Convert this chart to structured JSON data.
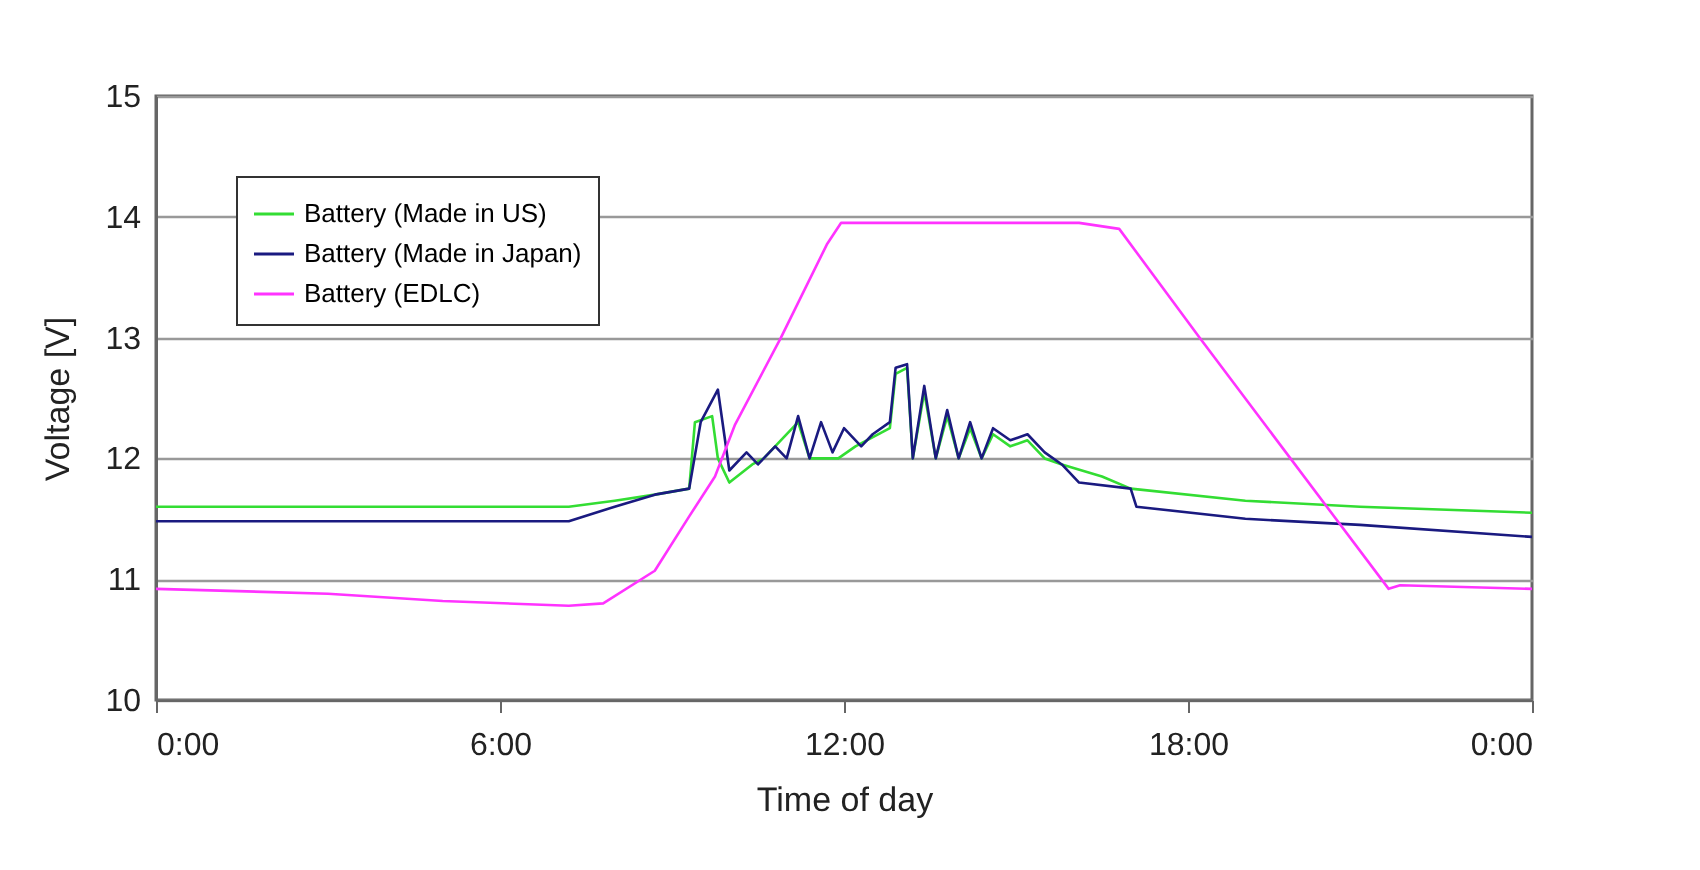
{
  "chart_data": {
    "type": "line",
    "xlabel": "Time of day",
    "ylabel": "Voltage  [V]",
    "xlim": [
      0,
      24
    ],
    "xticks": [
      {
        "value": 0,
        "label": "0:00"
      },
      {
        "value": 6,
        "label": "6:00"
      },
      {
        "value": 12,
        "label": "12:00"
      },
      {
        "value": 18,
        "label": "18:00"
      },
      {
        "value": 24,
        "label": "0:00"
      }
    ],
    "ylim": [
      10,
      15
    ],
    "yticks": [
      10,
      11,
      12,
      13,
      14,
      15
    ],
    "grid": "y",
    "legend": "top left",
    "marker": "none",
    "line_style": "solid",
    "series": [
      {
        "name": "Battery (Made in US)",
        "color": "#33dd33",
        "x": [
          0,
          7.2,
          8,
          8.7,
          9.3,
          9.4,
          9.7,
          9.8,
          10,
          10.4,
          10.6,
          11.2,
          11.4,
          11.9,
          12.2,
          12.8,
          12.9,
          13.1,
          13.2,
          13.4,
          13.6,
          13.8,
          14,
          14.2,
          14.4,
          14.6,
          14.9,
          15.2,
          15.5,
          15.8,
          16.5,
          17,
          19,
          21,
          24
        ],
        "values": [
          11.6,
          11.6,
          11.65,
          11.7,
          11.75,
          12.3,
          12.35,
          12,
          11.8,
          11.95,
          12,
          12.3,
          12,
          12,
          12.1,
          12.25,
          12.7,
          12.75,
          12,
          12.55,
          12,
          12.35,
          12,
          12.25,
          12,
          12.2,
          12.1,
          12.15,
          12,
          11.95,
          11.85,
          11.75,
          11.65,
          11.6,
          11.55
        ]
      },
      {
        "name": "Battery (Made in Japan)",
        "color": "#1a1a80",
        "x": [
          0,
          7.2,
          8,
          8.7,
          9.3,
          9.5,
          9.8,
          10,
          10.3,
          10.5,
          10.8,
          11,
          11.2,
          11.4,
          11.6,
          11.8,
          12,
          12.3,
          12.5,
          12.8,
          12.9,
          13.1,
          13.2,
          13.4,
          13.6,
          13.8,
          14,
          14.2,
          14.4,
          14.6,
          14.9,
          15.2,
          15.5,
          15.8,
          16.1,
          17,
          17.1,
          19,
          21,
          24
        ],
        "values": [
          11.48,
          11.48,
          11.6,
          11.7,
          11.75,
          12.3,
          12.57,
          11.9,
          12.05,
          11.95,
          12.1,
          12,
          12.35,
          12,
          12.3,
          12.05,
          12.25,
          12.1,
          12.2,
          12.3,
          12.75,
          12.78,
          12,
          12.6,
          12,
          12.4,
          12,
          12.3,
          12,
          12.25,
          12.15,
          12.2,
          12.05,
          11.95,
          11.8,
          11.75,
          11.6,
          11.5,
          11.45,
          11.35
        ]
      },
      {
        "name": "Battery (EDLC)",
        "color": "#ff33ff",
        "x": [
          0,
          3,
          5,
          7.2,
          7.8,
          8.7,
          9.3,
          9.75,
          10.1,
          10.9,
          11.7,
          11.95,
          13,
          14,
          15,
          16.1,
          16.8,
          18.2,
          21.5,
          21.7,
          24
        ],
        "values": [
          10.92,
          10.88,
          10.82,
          10.78,
          10.8,
          11.07,
          11.52,
          11.85,
          12.28,
          13,
          13.77,
          13.95,
          13.95,
          13.95,
          13.95,
          13.95,
          13.9,
          13,
          10.92,
          10.95,
          10.92
        ]
      }
    ]
  }
}
